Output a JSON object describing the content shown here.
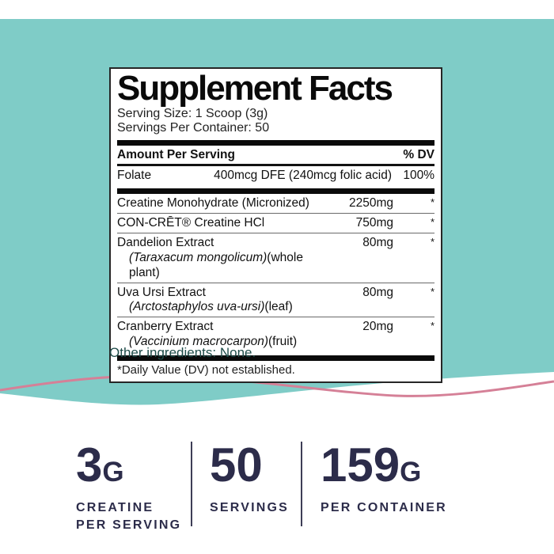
{
  "colors": {
    "teal_background": "#7fccc7",
    "wave_pink": "#d58097",
    "stat_navy": "#2c2c4a",
    "panel_border": "#262626",
    "other_ingredients_text": "#1d4b48"
  },
  "panel": {
    "title": "Supplement Facts",
    "serving_size": "Serving Size: 1 Scoop (3g)",
    "servings_per_container": "Servings Per Container: 50",
    "header": {
      "left": "Amount Per Serving",
      "right": "% DV"
    },
    "folate": {
      "name": "Folate",
      "amount": "400mcg DFE (240mcg folic acid)",
      "dv": "100%"
    },
    "rows": [
      {
        "name": "Creatine Monohydrate (Micronized)",
        "amount": "2250mg",
        "dv": "*"
      },
      {
        "name": "CON-CRĒT® Creatine HCl",
        "amount": "750mg",
        "dv": "*"
      },
      {
        "name": "Dandelion Extract",
        "botanical": "Taraxacum mongolicum",
        "part": "(whole plant)",
        "amount": "80mg",
        "dv": "*"
      },
      {
        "name": "Uva Ursi Extract",
        "botanical": "Arctostaphylos uva-ursi",
        "part": "(leaf)",
        "amount": "80mg",
        "dv": "*"
      },
      {
        "name": "Cranberry Extract",
        "botanical": "Vaccinium macrocarpon",
        "part": "(fruit)",
        "amount": "20mg",
        "dv": "*"
      }
    ],
    "footnote": "*Daily Value (DV) not established."
  },
  "other_ingredients": "Other ingredients: None.",
  "stats": [
    {
      "value": "3",
      "unit": "G",
      "label1": "CREATINE",
      "label2": "PER SERVING"
    },
    {
      "value": "50",
      "unit": "",
      "label1": "SERVINGS",
      "label2": ""
    },
    {
      "value": "159",
      "unit": "G",
      "label1": "PER CONTAINER",
      "label2": ""
    }
  ]
}
